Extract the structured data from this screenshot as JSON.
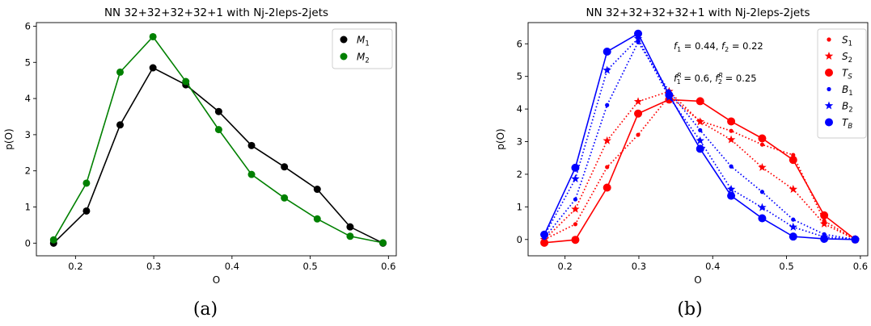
{
  "chart_data": [
    {
      "type": "line",
      "panel": "(a)",
      "title": "NN 32+32+32+32+1 with Nj-2leps-2jets",
      "xlabel": "O",
      "ylabel": "p(O)",
      "xlim": [
        0.15,
        0.61
      ],
      "ylim": [
        -0.35,
        6.1
      ],
      "xticks": [
        "0.2",
        "0.3",
        "0.4",
        "0.5",
        "0.6"
      ],
      "xtick_values": [
        0.2,
        0.3,
        0.4,
        0.5,
        0.6
      ],
      "yticks": [
        "0",
        "1",
        "2",
        "3",
        "4",
        "5",
        "6"
      ],
      "ytick_values": [
        0,
        1,
        2,
        3,
        4,
        5,
        6
      ],
      "legend_position": "top-right",
      "x": [
        0.172,
        0.214,
        0.257,
        0.299,
        0.341,
        0.383,
        0.425,
        0.467,
        0.509,
        0.551,
        0.593
      ],
      "series": [
        {
          "name": "M",
          "sub": "1",
          "color": "#000000",
          "marker": "circle",
          "style": "solid",
          "values": [
            0.0,
            0.89,
            3.27,
            4.85,
            4.38,
            3.64,
            2.7,
            2.11,
            1.49,
            0.45,
            0.0
          ]
        },
        {
          "name": "M",
          "sub": "2",
          "color": "#008000",
          "marker": "circle",
          "style": "solid",
          "values": [
            0.09,
            1.66,
            4.73,
            5.71,
            4.47,
            3.14,
            1.9,
            1.25,
            0.67,
            0.19,
            0.01
          ]
        }
      ]
    },
    {
      "type": "line",
      "panel": "(b)",
      "title": "NN 32+32+32+32+1 with Nj-2leps-2jets",
      "xlabel": "O",
      "ylabel": "p(O)",
      "xlim": [
        0.15,
        0.61
      ],
      "ylim": [
        -0.5,
        6.65
      ],
      "xticks": [
        "0.2",
        "0.3",
        "0.4",
        "0.5",
        "0.6"
      ],
      "xtick_values": [
        0.2,
        0.3,
        0.4,
        0.5,
        0.6
      ],
      "yticks": [
        "0",
        "1",
        "2",
        "3",
        "4",
        "5",
        "6"
      ],
      "ytick_values": [
        0,
        1,
        2,
        3,
        4,
        5,
        6
      ],
      "legend_position": "top-right",
      "annotations": [
        "f1 = 0.44, f2 = 0.22",
        "f1R = 0.6, f2R = 0.25"
      ],
      "x": [
        0.172,
        0.214,
        0.257,
        0.299,
        0.341,
        0.383,
        0.425,
        0.467,
        0.509,
        0.551,
        0.593
      ],
      "series": [
        {
          "name": "S",
          "sub": "1",
          "color": "#ff0000",
          "marker": "dot",
          "style": "dotted",
          "values": [
            0.0,
            0.47,
            2.22,
            3.21,
            4.39,
            3.63,
            3.33,
            2.91,
            2.59,
            0.57,
            0.0
          ]
        },
        {
          "name": "S",
          "sub": "2",
          "color": "#ff0000",
          "marker": "star",
          "style": "dotted",
          "values": [
            0.0,
            0.93,
            3.03,
            4.23,
            4.54,
            3.61,
            3.06,
            2.21,
            1.54,
            0.48,
            0.0
          ]
        },
        {
          "name": "T",
          "sub": "S",
          "color": "#ff0000",
          "marker": "big-circle",
          "style": "solid",
          "values": [
            -0.1,
            -0.01,
            1.59,
            3.86,
            4.29,
            4.24,
            3.62,
            3.1,
            2.44,
            0.74,
            0.0
          ]
        },
        {
          "name": "B",
          "sub": "1",
          "color": "#0000ff",
          "marker": "dot",
          "style": "dotted",
          "values": [
            0.05,
            1.23,
            4.12,
            6.05,
            4.54,
            3.35,
            2.24,
            1.46,
            0.61,
            0.16,
            0.0
          ]
        },
        {
          "name": "B",
          "sub": "2",
          "color": "#0000ff",
          "marker": "star",
          "style": "dotted",
          "values": [
            0.12,
            1.86,
            5.19,
            6.16,
            4.36,
            3.03,
            1.54,
            0.98,
            0.38,
            0.08,
            0.0
          ]
        },
        {
          "name": "T",
          "sub": "B",
          "color": "#0000ff",
          "marker": "big-circle",
          "style": "solid",
          "values": [
            0.15,
            2.2,
            5.76,
            6.31,
            4.43,
            2.78,
            1.34,
            0.65,
            0.09,
            0.02,
            0.0
          ]
        }
      ]
    }
  ],
  "captions": [
    "(a)",
    "(b)"
  ]
}
